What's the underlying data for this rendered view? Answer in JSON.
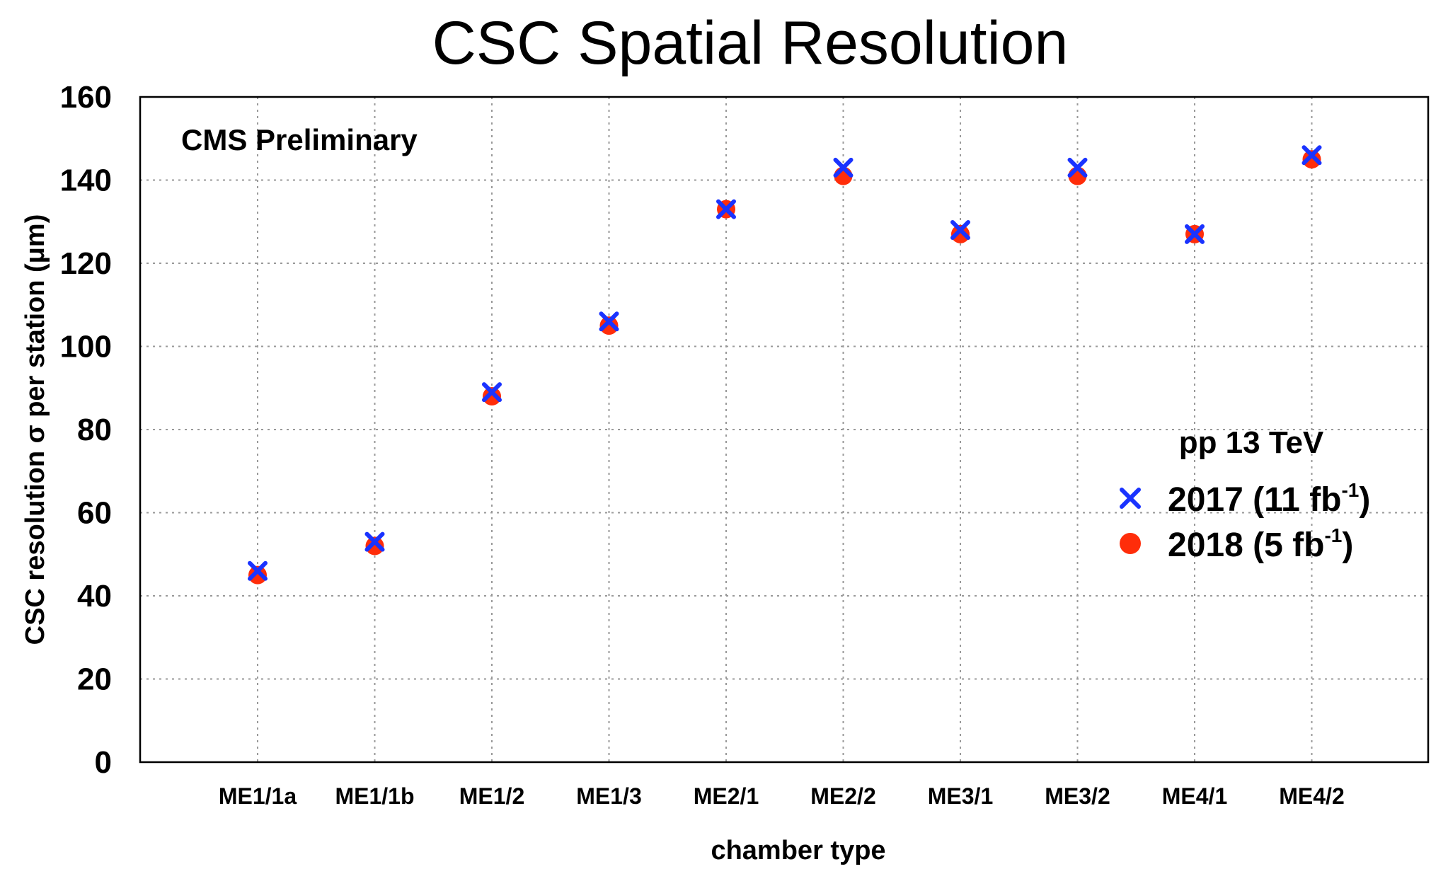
{
  "chart_data": {
    "type": "scatter",
    "title": "CSC Spatial Resolution",
    "xlabel": "chamber type",
    "ylabel": "CSC resolution σ per station (μm)",
    "ylim": [
      0,
      160
    ],
    "yticks": [
      0,
      20,
      40,
      60,
      80,
      100,
      120,
      140,
      160
    ],
    "grid": true,
    "categories": [
      "ME1/1a",
      "ME1/1b",
      "ME1/2",
      "ME1/3",
      "ME2/1",
      "ME2/2",
      "ME3/1",
      "ME3/2",
      "ME4/1",
      "ME4/2"
    ],
    "annotation": "CMS Preliminary",
    "legend": {
      "title": "pp 13 TeV",
      "placement": "right"
    },
    "series": [
      {
        "name": "2017 (11 fb-1)",
        "label_main": "2017 (11 fb",
        "label_sup": "-1",
        "label_end": ")",
        "marker": "x",
        "color": "#1a33ff",
        "values": [
          46,
          53,
          89,
          106,
          133,
          143,
          128,
          143,
          127,
          146
        ]
      },
      {
        "name": "2018 (5 fb-1)",
        "label_main": "2018 (5 fb",
        "label_sup": "-1",
        "label_end": ")",
        "marker": "circle",
        "color": "#ff2d0a",
        "values": [
          45,
          52,
          88,
          105,
          133,
          141,
          127,
          141,
          127,
          145
        ]
      }
    ]
  }
}
